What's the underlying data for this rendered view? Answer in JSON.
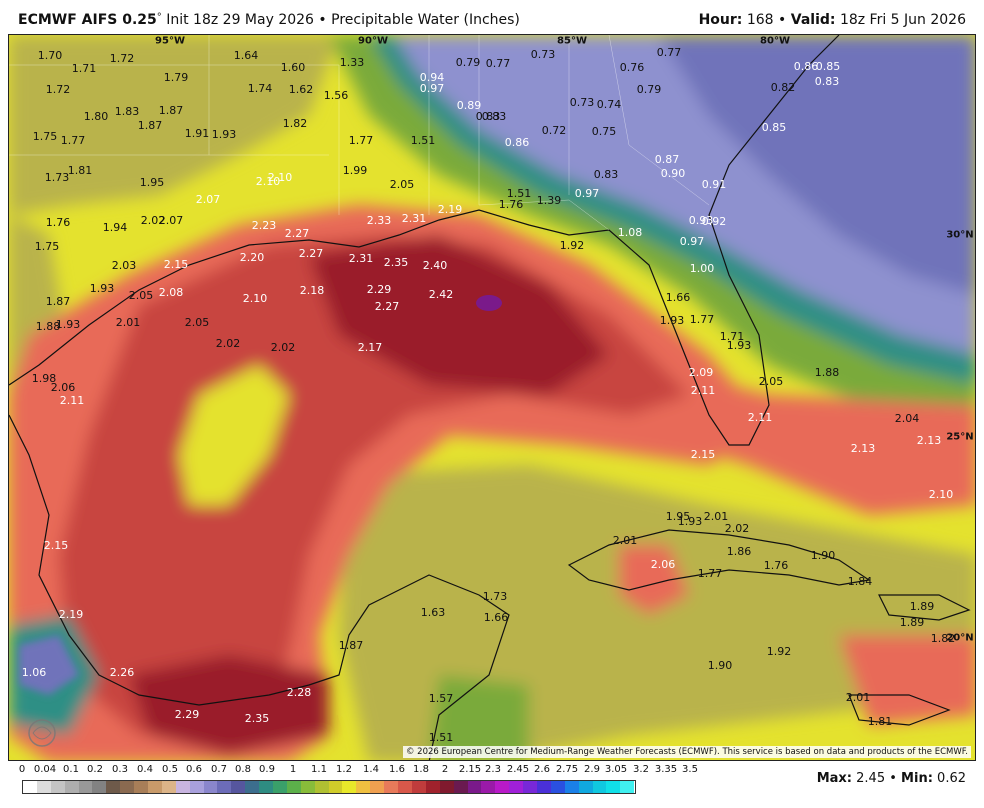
{
  "header": {
    "model": "ECMWF AIFS 0.25",
    "degree": "°",
    "init": "Init 18z 29 May 2026",
    "bullet": "•",
    "product": "Precipitable Water (Inches)",
    "hour_label": "Hour:",
    "hour_value": "168",
    "valid_label": "Valid:",
    "valid_value": "18z Fri 5 Jun 2026"
  },
  "axis_labels": {
    "lon_95w": "95°W",
    "lon_90w": "90°W",
    "lon_85w": "85°W",
    "lon_80w": "80°W",
    "lat_30n": "30°N",
    "lat_25n": "25°N",
    "lat_20n": "20°N"
  },
  "colors": {
    "very_dry": "#6a6fb4",
    "dry": "#8e91cf",
    "teal": "#2e8f85",
    "green": "#7aaa3a",
    "olive": "#b5b04a",
    "yellow": "#e8e82a",
    "salmon": "#e86a58",
    "red": "#c8443f",
    "dark_red": "#9a1e2c",
    "max_purple": "#7a1a8a"
  },
  "values": [
    {
      "t": "1.70",
      "c": "#111"
    },
    {
      "t": "1.71",
      "c": "#111"
    },
    {
      "t": "1.72",
      "c": "#111"
    },
    {
      "t": "1.79",
      "c": "#111"
    },
    {
      "t": "1.64",
      "c": "#111"
    },
    {
      "t": "1.60",
      "c": "#111"
    },
    {
      "t": "1.33",
      "c": "#111"
    },
    {
      "t": "1.72",
      "c": "#111"
    },
    {
      "t": "1.74",
      "c": "#111"
    },
    {
      "t": "1.62",
      "c": "#111"
    },
    {
      "t": "1.56",
      "c": "#111"
    },
    {
      "t": "1.80",
      "c": "#111"
    },
    {
      "t": "1.83",
      "c": "#111"
    },
    {
      "t": "1.87",
      "c": "#111"
    },
    {
      "t": "1.87",
      "c": "#111"
    },
    {
      "t": "1.82",
      "c": "#111"
    },
    {
      "t": "1.75",
      "c": "#111"
    },
    {
      "t": "1.77",
      "c": "#111"
    },
    {
      "t": "1.91",
      "c": "#111"
    },
    {
      "t": "1.93",
      "c": "#111"
    },
    {
      "t": "1.77",
      "c": "#111"
    },
    {
      "t": "1.51",
      "c": "#111"
    },
    {
      "t": "1.81",
      "c": "#111"
    },
    {
      "t": "1.73",
      "c": "#111"
    },
    {
      "t": "1.95",
      "c": "#111"
    },
    {
      "t": "1.99",
      "c": "#111"
    },
    {
      "t": "2.05",
      "c": "#111"
    },
    {
      "t": "2.10",
      "c": "#ffffff"
    },
    {
      "t": "2.10",
      "c": "#ffffff"
    },
    {
      "t": "2.07",
      "c": "#ffffff"
    },
    {
      "t": "1.51",
      "c": "#111"
    },
    {
      "t": "1.76",
      "c": "#111"
    },
    {
      "t": "1.39",
      "c": "#111"
    },
    {
      "t": "1.76",
      "c": "#111"
    },
    {
      "t": "1.94",
      "c": "#111"
    },
    {
      "t": "2.02",
      "c": "#111"
    },
    {
      "t": "2.07",
      "c": "#111"
    },
    {
      "t": "2.23",
      "c": "#ffffff"
    },
    {
      "t": "2.33",
      "c": "#ffffff"
    },
    {
      "t": "2.31",
      "c": "#ffffff"
    },
    {
      "t": "2.19",
      "c": "#ffffff"
    },
    {
      "t": "1.75",
      "c": "#111"
    },
    {
      "t": "2.27",
      "c": "#ffffff"
    },
    {
      "t": "2.27",
      "c": "#ffffff"
    },
    {
      "t": "1.92",
      "c": "#111"
    },
    {
      "t": "2.03",
      "c": "#111"
    },
    {
      "t": "2.15",
      "c": "#ffffff"
    },
    {
      "t": "2.20",
      "c": "#ffffff"
    },
    {
      "t": "2.31",
      "c": "#ffffff"
    },
    {
      "t": "2.35",
      "c": "#ffffff"
    },
    {
      "t": "2.40",
      "c": "#ffffff"
    },
    {
      "t": "1.87",
      "c": "#111"
    },
    {
      "t": "1.93",
      "c": "#111"
    },
    {
      "t": "2.05",
      "c": "#111"
    },
    {
      "t": "2.08",
      "c": "#ffffff"
    },
    {
      "t": "2.10",
      "c": "#ffffff"
    },
    {
      "t": "2.18",
      "c": "#ffffff"
    },
    {
      "t": "2.29",
      "c": "#ffffff"
    },
    {
      "t": "2.42",
      "c": "#ffffff"
    },
    {
      "t": "1.88",
      "c": "#111"
    },
    {
      "t": "1.93",
      "c": "#111"
    },
    {
      "t": "2.01",
      "c": "#111"
    },
    {
      "t": "2.05",
      "c": "#111"
    },
    {
      "t": "2.27",
      "c": "#ffffff"
    },
    {
      "t": "2.02",
      "c": "#111"
    },
    {
      "t": "2.02",
      "c": "#111"
    },
    {
      "t": "2.17",
      "c": "#ffffff"
    },
    {
      "t": "1.98",
      "c": "#111"
    },
    {
      "t": "2.06",
      "c": "#111"
    },
    {
      "t": "2.11",
      "c": "#ffffff"
    },
    {
      "t": "2.09",
      "c": "#ffffff"
    },
    {
      "t": "2.11",
      "c": "#ffffff"
    },
    {
      "t": "2.05",
      "c": "#111"
    },
    {
      "t": "2.11",
      "c": "#ffffff"
    },
    {
      "t": "2.15",
      "c": "#ffffff"
    },
    {
      "t": "2.04",
      "c": "#111"
    },
    {
      "t": "2.13",
      "c": "#ffffff"
    },
    {
      "t": "2.13",
      "c": "#ffffff"
    },
    {
      "t": "2.10",
      "c": "#ffffff"
    },
    {
      "t": "1.95",
      "c": "#111"
    },
    {
      "t": "1.93",
      "c": "#111"
    },
    {
      "t": "2.01",
      "c": "#111"
    },
    {
      "t": "2.02",
      "c": "#111"
    },
    {
      "t": "2.01",
      "c": "#111"
    },
    {
      "t": "2.06",
      "c": "#ffffff"
    },
    {
      "t": "1.86",
      "c": "#111"
    },
    {
      "t": "1.76",
      "c": "#111"
    },
    {
      "t": "1.77",
      "c": "#111"
    },
    {
      "t": "1.90",
      "c": "#111"
    },
    {
      "t": "1.84",
      "c": "#111"
    },
    {
      "t": "2.15",
      "c": "#ffffff"
    },
    {
      "t": "2.19",
      "c": "#ffffff"
    },
    {
      "t": "1.63",
      "c": "#111"
    },
    {
      "t": "1.73",
      "c": "#111"
    },
    {
      "t": "1.66",
      "c": "#111"
    },
    {
      "t": "1.89",
      "c": "#111"
    },
    {
      "t": "1.89",
      "c": "#111"
    },
    {
      "t": "1.82",
      "c": "#111"
    },
    {
      "t": "1.87",
      "c": "#111"
    },
    {
      "t": "1.92",
      "c": "#111"
    },
    {
      "t": "1.90",
      "c": "#111"
    },
    {
      "t": "1.06",
      "c": "#ffffff"
    },
    {
      "t": "2.26",
      "c": "#ffffff"
    },
    {
      "t": "2.28",
      "c": "#ffffff"
    },
    {
      "t": "1.57",
      "c": "#111"
    },
    {
      "t": "2.01",
      "c": "#111"
    },
    {
      "t": "2.29",
      "c": "#ffffff"
    },
    {
      "t": "2.35",
      "c": "#ffffff"
    },
    {
      "t": "1.81",
      "c": "#111"
    },
    {
      "t": "1.51",
      "c": "#111"
    },
    {
      "t": "0.79",
      "c": "#111"
    },
    {
      "t": "0.77",
      "c": "#111"
    },
    {
      "t": "0.73",
      "c": "#111"
    },
    {
      "t": "0.77",
      "c": "#111"
    },
    {
      "t": "0.76",
      "c": "#111"
    },
    {
      "t": "0.79",
      "c": "#111"
    },
    {
      "t": "0.94",
      "c": "#ffffff"
    },
    {
      "t": "0.97",
      "c": "#ffffff"
    },
    {
      "t": "0.83",
      "c": "#111"
    },
    {
      "t": "0.82",
      "c": "#111"
    },
    {
      "t": "0.86",
      "c": "#ffffff"
    },
    {
      "t": "0.85",
      "c": "#ffffff"
    },
    {
      "t": "0.83",
      "c": "#ffffff"
    },
    {
      "t": "0.89",
      "c": "#ffffff"
    },
    {
      "t": "0.83",
      "c": "#111"
    },
    {
      "t": "0.73",
      "c": "#111"
    },
    {
      "t": "0.74",
      "c": "#111"
    },
    {
      "t": "0.72",
      "c": "#111"
    },
    {
      "t": "0.75",
      "c": "#111"
    },
    {
      "t": "0.85",
      "c": "#ffffff"
    },
    {
      "t": "0.86",
      "c": "#ffffff"
    },
    {
      "t": "0.87",
      "c": "#ffffff"
    },
    {
      "t": "0.90",
      "c": "#ffffff"
    },
    {
      "t": "0.83",
      "c": "#111"
    },
    {
      "t": "0.91",
      "c": "#ffffff"
    },
    {
      "t": "0.97",
      "c": "#ffffff"
    },
    {
      "t": "0.93",
      "c": "#ffffff"
    },
    {
      "t": "0.92",
      "c": "#ffffff"
    },
    {
      "t": "1.08",
      "c": "#ffffff"
    },
    {
      "t": "0.97",
      "c": "#ffffff"
    },
    {
      "t": "1.00",
      "c": "#ffffff"
    },
    {
      "t": "1.66",
      "c": "#111"
    },
    {
      "t": "1.93",
      "c": "#111"
    },
    {
      "t": "1.77",
      "c": "#111"
    },
    {
      "t": "1.71",
      "c": "#111"
    },
    {
      "t": "1.93",
      "c": "#111"
    },
    {
      "t": "1.88",
      "c": "#111"
    }
  ],
  "credit": "© 2026 European Centre for Medium-Range Weather Forecasts (ECMWF). This service is based on data and products of the ECMWF.",
  "logo_text": "WEATHERBELL",
  "legend": {
    "labels": [
      "0",
      "0.04",
      "0.1",
      "0.2",
      "0.3",
      "0.4",
      "0.5",
      "0.6",
      "0.7",
      "0.8",
      "0.9",
      "1",
      "1.1",
      "1.2",
      "1.4",
      "1.6",
      "1.8",
      "2",
      "2.15",
      "2.3",
      "2.45",
      "2.6",
      "2.75",
      "2.9",
      "3.05",
      "3.2",
      "3.35",
      "3.5"
    ],
    "swatches": [
      "#ffffff",
      "#dcdcdc",
      "#c4c4c4",
      "#aeaeae",
      "#989898",
      "#828282",
      "#6e5a4a",
      "#8a6a50",
      "#a87e58",
      "#c89a6a",
      "#dcb488",
      "#c8b4e0",
      "#a8a0dc",
      "#8a86cc",
      "#6c6cb8",
      "#56569e",
      "#3c6e8e",
      "#2e8c82",
      "#3aa06a",
      "#5cb04a",
      "#88bc3a",
      "#b0c032",
      "#d0cc2a",
      "#e8e82a",
      "#f0c040",
      "#f0a050",
      "#e87a5a",
      "#d8584a",
      "#c03c3c",
      "#a0222c",
      "#801a2e",
      "#6a1a50",
      "#7a1a8a",
      "#9a1aa8",
      "#b81ac8",
      "#a020d8",
      "#7828d8",
      "#4a30d8",
      "#2a50e0",
      "#1a80e8",
      "#10a8e0",
      "#10c8e0",
      "#10e0e8",
      "#40f0f0"
    ]
  },
  "stats": {
    "max_label": "Max:",
    "max_value": "2.45",
    "min_label": "Min:",
    "min_value": "0.62"
  }
}
